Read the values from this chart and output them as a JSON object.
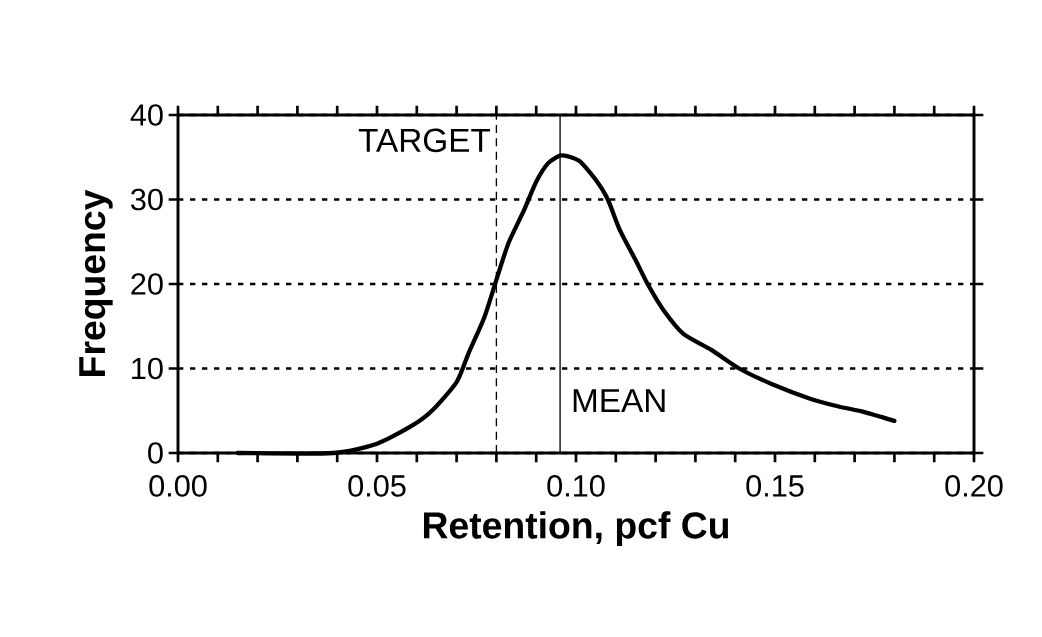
{
  "chart_data": {
    "type": "line",
    "xlabel": "Retention, pcf Cu",
    "ylabel": "Frequency",
    "xlim": [
      0,
      0.2
    ],
    "ylim": [
      0,
      40
    ],
    "xticks": [
      {
        "value": 0,
        "label": "0.00"
      },
      {
        "value": 0.01,
        "label": null
      },
      {
        "value": 0.02,
        "label": null
      },
      {
        "value": 0.03,
        "label": null
      },
      {
        "value": 0.04,
        "label": null
      },
      {
        "value": 0.05,
        "label": "0.05"
      },
      {
        "value": 0.06,
        "label": null
      },
      {
        "value": 0.07,
        "label": null
      },
      {
        "value": 0.08,
        "label": null
      },
      {
        "value": 0.09,
        "label": null
      },
      {
        "value": 0.1,
        "label": "0.10"
      },
      {
        "value": 0.11,
        "label": null
      },
      {
        "value": 0.12,
        "label": null
      },
      {
        "value": 0.13,
        "label": null
      },
      {
        "value": 0.14,
        "label": null
      },
      {
        "value": 0.15,
        "label": "0.15"
      },
      {
        "value": 0.16,
        "label": null
      },
      {
        "value": 0.17,
        "label": null
      },
      {
        "value": 0.18,
        "label": null
      },
      {
        "value": 0.19,
        "label": null
      },
      {
        "value": 0.2,
        "label": "0.20"
      }
    ],
    "yticks": [
      0,
      10,
      20,
      30,
      40
    ],
    "grid": "y",
    "marker": "none",
    "line_style": "solid",
    "series": [
      {
        "color": "#000000",
        "x": [
          0.015,
          0.039,
          0.05,
          0.059,
          0.064,
          0.07,
          0.073,
          0.077,
          0.08,
          0.083,
          0.087,
          0.09,
          0.093,
          0.096,
          0.098,
          0.101,
          0.105,
          0.108,
          0.111,
          0.115,
          0.118,
          0.122,
          0.127,
          0.134,
          0.141,
          0.149,
          0.159,
          0.166,
          0.172,
          0.18
        ],
        "values": [
          0,
          0,
          1.1,
          3.3,
          5.1,
          8.4,
          11.8,
          16.1,
          20.5,
          24.8,
          28.8,
          32.1,
          34.3,
          35.2,
          35.1,
          34.5,
          32.3,
          30,
          26.4,
          22.8,
          20,
          16.9,
          14.1,
          12.2,
          10,
          8.2,
          6.4,
          5.5,
          4.9,
          3.8
        ]
      }
    ],
    "ref_lines": [
      {
        "axis": "x",
        "value": 0.08,
        "label": "TARGET",
        "line_style": "dashed",
        "color": "#000000"
      },
      {
        "axis": "x",
        "value": 0.096,
        "label": "MEAN",
        "line_style": "solid",
        "color": "#000000"
      }
    ]
  }
}
